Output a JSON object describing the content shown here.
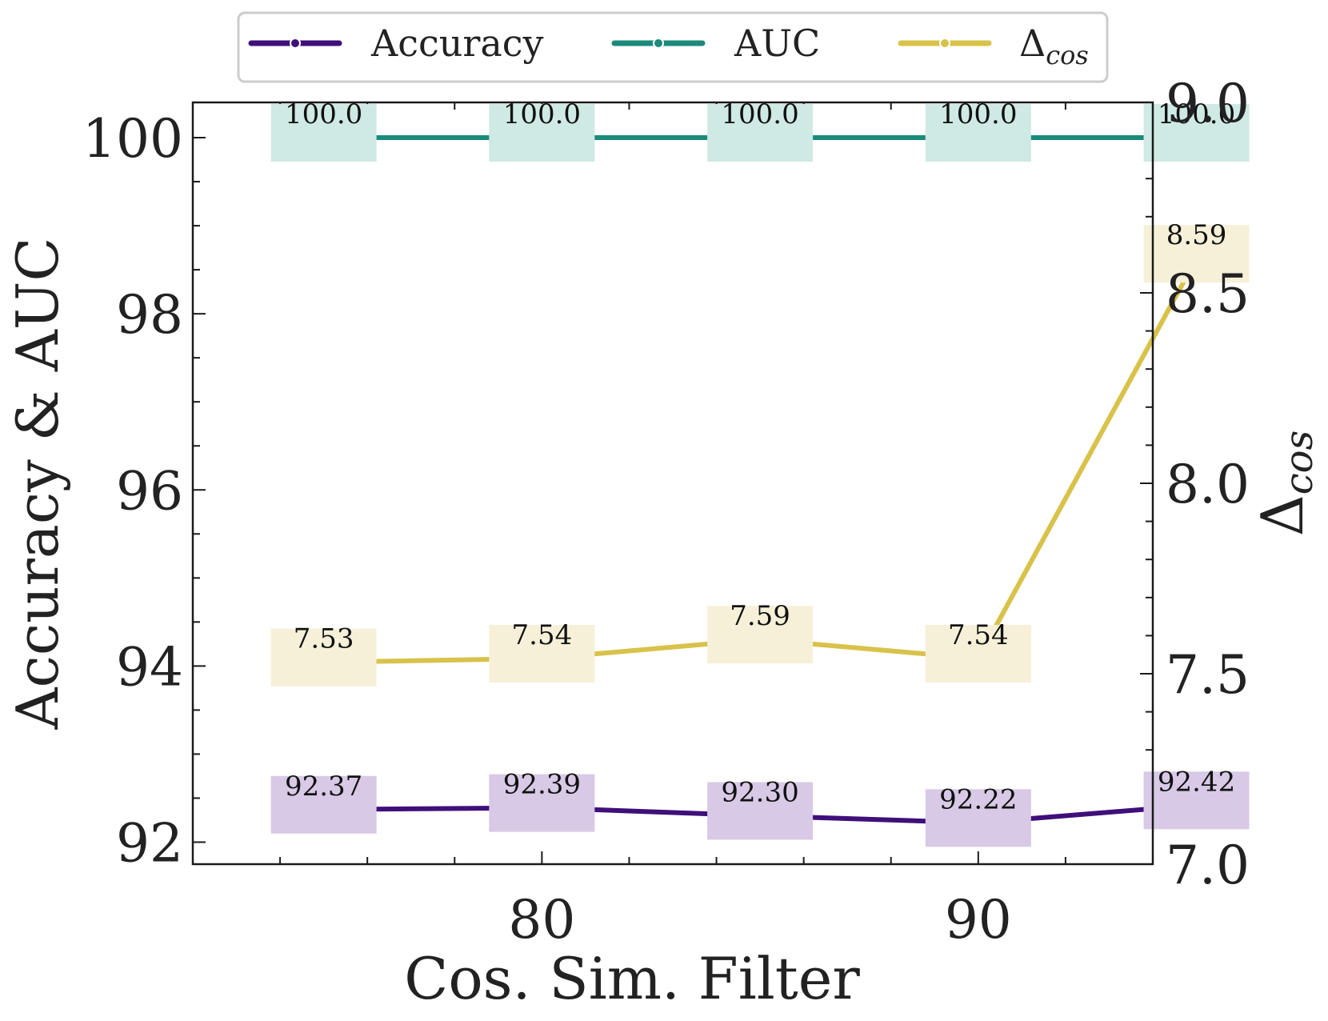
{
  "chart_data": {
    "type": "line",
    "xlabel": "Cos. Sim. Filter",
    "ylabel_left": "Accuracy & AUC",
    "ylabel_right_base": "Δ",
    "ylabel_right_sub": "cos",
    "x": [
      75,
      80,
      85,
      90,
      95
    ],
    "xlim": [
      72,
      94
    ],
    "ylim_left": [
      91.75,
      100.4
    ],
    "ylim_right": [
      7.0,
      9.0
    ],
    "xticks": [
      80,
      90
    ],
    "xtick_labels": [
      "80",
      "90"
    ],
    "yticks_left": [
      92,
      94,
      96,
      98,
      100
    ],
    "yticks_left_labels": [
      "92",
      "94",
      "96",
      "98",
      "100"
    ],
    "yticks_right": [
      7.0,
      7.5,
      8.0,
      8.5,
      9.0
    ],
    "yticks_right_labels": [
      "7.0",
      "7.5",
      "8.0",
      "8.5",
      "9.0"
    ],
    "legend": {
      "placement": "top-center",
      "entries": [
        {
          "label": "Accuracy",
          "color": "#3f0f7a"
        },
        {
          "label": "AUC",
          "color": "#1b8a7a"
        },
        {
          "label_base": "Δ",
          "label_sub": "cos",
          "color": "#d8c24a"
        }
      ]
    },
    "series": [
      {
        "name": "Accuracy",
        "axis": "left",
        "color": "#3f0f7a",
        "label_bg": "#d8c9e6",
        "values": [
          92.37,
          92.39,
          92.3,
          92.22,
          92.42
        ],
        "labels": [
          "92.37",
          "92.39",
          "92.30",
          "92.22",
          "92.42"
        ]
      },
      {
        "name": "AUC",
        "axis": "left",
        "color": "#1b8a7a",
        "label_bg": "#cfe9e4",
        "values": [
          100.0,
          100.0,
          100.0,
          100.0,
          100.0
        ],
        "labels": [
          "100.0",
          "100.0",
          "100.0",
          "100.0",
          "100.0"
        ]
      },
      {
        "name": "Δcos",
        "axis": "right",
        "color": "#d8c24a",
        "label_bg": "#f6f0d8",
        "values": [
          7.53,
          7.54,
          7.59,
          7.54,
          8.59
        ],
        "labels": [
          "7.53",
          "7.54",
          "7.59",
          "7.54",
          "8.59"
        ]
      }
    ]
  }
}
